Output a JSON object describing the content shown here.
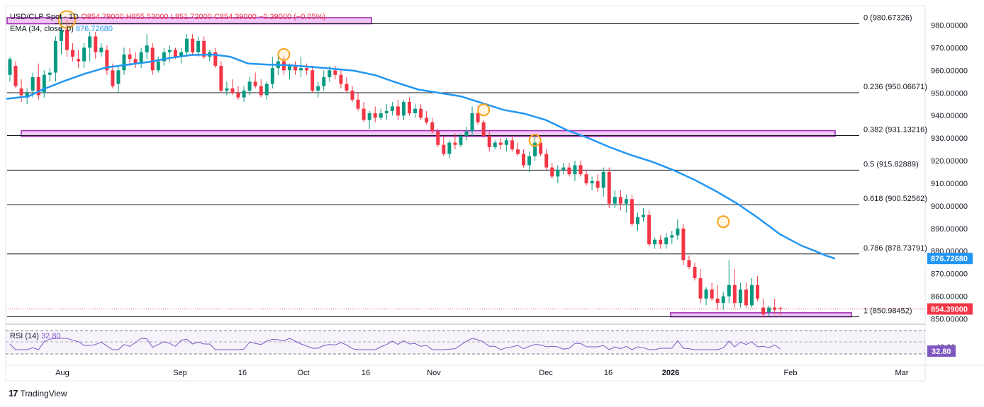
{
  "header": {
    "symbol": "USD/CLP Spot · 1D",
    "open": "O854.79000",
    "high": "H855.53000",
    "low": "L851.72000",
    "close": "C854.39000",
    "change": "−0.39000 (−0.05%)",
    "ema_label": "EMA (34, close, 0)",
    "ema_value": "876.72680"
  },
  "rsi": {
    "label": "RSI (14)",
    "value": "32.80",
    "axis_label": "40.00"
  },
  "branding": {
    "name": "TradingView"
  },
  "colors": {
    "up": "#089981",
    "down": "#f23645",
    "ema": "#2196f3",
    "fib_line": "#131722",
    "zone": "#9c27b0",
    "zone_fill": "#f3c6f7",
    "highlight_circle": "#f7a21b",
    "rsi": "#7e57c2"
  },
  "chart_data": {
    "type": "candlestick",
    "title": "USD/CLP Spot · 1D",
    "y_axis": {
      "min": 848,
      "max": 983,
      "ticks": [
        "980.00000",
        "970.00000",
        "960.00000",
        "950.00000",
        "940.00000",
        "930.00000",
        "920.00000",
        "910.00000",
        "900.00000",
        "890.00000",
        "880.00000",
        "870.00000",
        "860.00000",
        "850.00000"
      ]
    },
    "x_axis": {
      "ticks": [
        "Aug",
        "Sep",
        "16",
        "Oct",
        "16",
        "Nov",
        "Dec",
        "16",
        "2026",
        "Feb",
        "Mar"
      ]
    },
    "fibonacci": [
      {
        "level": "0",
        "price": 980.67326,
        "label": "0 (980.67326)"
      },
      {
        "level": "0.236",
        "price": 950.06671,
        "label": "0.236 (950.06671)"
      },
      {
        "level": "0.382",
        "price": 931.13216,
        "label": "0.382 (931.13216)"
      },
      {
        "level": "0.5",
        "price": 915.82889,
        "label": "0.5 (915.82889)"
      },
      {
        "level": "0.618",
        "price": 900.52562,
        "label": "0.618 (900.52562)"
      },
      {
        "level": "0.786",
        "price": 878.73791,
        "label": "0.786 (878.73791)"
      },
      {
        "level": "1",
        "price": 850.98452,
        "label": "1 (850.98452)"
      }
    ],
    "zones": [
      {
        "name": "top",
        "low": 980.6,
        "high": 983.3
      },
      {
        "name": "middle",
        "low": 930.8,
        "high": 933.3
      },
      {
        "name": "bottom",
        "low": 850.9,
        "high": 852.7
      }
    ],
    "last_price": {
      "value": 854.39,
      "label": "854.39000"
    },
    "ema": {
      "name": "EMA (34, close, 0)",
      "last": 876.7268,
      "last_label": "876.72680",
      "points": [
        [
          9,
          947.4
        ],
        [
          40,
          948.5
        ],
        [
          60,
          951.5
        ],
        [
          90,
          955.2
        ],
        [
          120,
          958.5
        ],
        [
          150,
          961.3
        ],
        [
          180,
          962.5
        ],
        [
          210,
          963.7
        ],
        [
          240,
          965.5
        ],
        [
          270,
          966.8
        ],
        [
          300,
          967.0
        ],
        [
          325,
          966.0
        ],
        [
          350,
          963.0
        ],
        [
          380,
          962.5
        ],
        [
          410,
          962.2
        ],
        [
          440,
          961.5
        ],
        [
          470,
          960.7
        ],
        [
          500,
          959.8
        ],
        [
          530,
          957.8
        ],
        [
          560,
          954.5
        ],
        [
          590,
          951.5
        ],
        [
          620,
          950.0
        ],
        [
          650,
          948.5
        ],
        [
          680,
          945.5
        ],
        [
          710,
          942.5
        ],
        [
          740,
          940.8
        ],
        [
          770,
          938.0
        ],
        [
          800,
          933.5
        ],
        [
          830,
          930.0
        ],
        [
          860,
          926.0
        ],
        [
          890,
          922.5
        ],
        [
          920,
          919.5
        ],
        [
          950,
          915.8
        ],
        [
          980,
          911.5
        ],
        [
          1010,
          906.5
        ],
        [
          1040,
          901.0
        ],
        [
          1070,
          894.5
        ],
        [
          1100,
          887.5
        ],
        [
          1130,
          882.5
        ],
        [
          1150,
          880.0
        ],
        [
          1165,
          878.0
        ],
        [
          1178,
          876.7
        ]
      ]
    },
    "candles": [
      {
        "o": 958,
        "h": 966,
        "l": 955,
        "c": 965
      },
      {
        "o": 962,
        "h": 964,
        "l": 952,
        "c": 953
      },
      {
        "o": 952,
        "h": 956,
        "l": 946,
        "c": 949
      },
      {
        "o": 948,
        "h": 952,
        "l": 945,
        "c": 950
      },
      {
        "o": 951,
        "h": 959,
        "l": 948,
        "c": 957
      },
      {
        "o": 957,
        "h": 963,
        "l": 947,
        "c": 949
      },
      {
        "o": 950,
        "h": 960,
        "l": 948,
        "c": 958
      },
      {
        "o": 958,
        "h": 961,
        "l": 955,
        "c": 959
      },
      {
        "o": 959,
        "h": 975,
        "l": 955,
        "c": 973
      },
      {
        "o": 973,
        "h": 984,
        "l": 967,
        "c": 978
      },
      {
        "o": 978,
        "h": 982,
        "l": 966,
        "c": 969
      },
      {
        "o": 969,
        "h": 972,
        "l": 964,
        "c": 966
      },
      {
        "o": 965,
        "h": 969,
        "l": 961,
        "c": 964
      },
      {
        "o": 964,
        "h": 972,
        "l": 961,
        "c": 970
      },
      {
        "o": 970,
        "h": 977,
        "l": 964,
        "c": 975
      },
      {
        "o": 975,
        "h": 977,
        "l": 965,
        "c": 968
      },
      {
        "o": 968,
        "h": 972,
        "l": 966,
        "c": 970
      },
      {
        "o": 969,
        "h": 971,
        "l": 958,
        "c": 960
      },
      {
        "o": 960,
        "h": 963,
        "l": 952,
        "c": 953
      },
      {
        "o": 954,
        "h": 962,
        "l": 950,
        "c": 960
      },
      {
        "o": 960,
        "h": 970,
        "l": 958,
        "c": 967
      },
      {
        "o": 967,
        "h": 970,
        "l": 962,
        "c": 965
      },
      {
        "o": 965,
        "h": 968,
        "l": 961,
        "c": 963
      },
      {
        "o": 963,
        "h": 970,
        "l": 961,
        "c": 968
      },
      {
        "o": 968,
        "h": 976,
        "l": 965,
        "c": 971
      },
      {
        "o": 970,
        "h": 972,
        "l": 958,
        "c": 960
      },
      {
        "o": 960,
        "h": 966,
        "l": 959,
        "c": 964
      },
      {
        "o": 964,
        "h": 970,
        "l": 962,
        "c": 968
      },
      {
        "o": 968,
        "h": 971,
        "l": 964,
        "c": 969
      },
      {
        "o": 969,
        "h": 970,
        "l": 965,
        "c": 966
      },
      {
        "o": 966,
        "h": 970,
        "l": 963,
        "c": 968
      },
      {
        "o": 968,
        "h": 976,
        "l": 966,
        "c": 974
      },
      {
        "o": 974,
        "h": 976,
        "l": 967,
        "c": 968
      },
      {
        "o": 968,
        "h": 975,
        "l": 966,
        "c": 973
      },
      {
        "o": 973,
        "h": 975,
        "l": 965,
        "c": 966
      },
      {
        "o": 966,
        "h": 969,
        "l": 964,
        "c": 968
      },
      {
        "o": 968,
        "h": 970,
        "l": 961,
        "c": 962
      },
      {
        "o": 962,
        "h": 964,
        "l": 950,
        "c": 951
      },
      {
        "o": 951,
        "h": 955,
        "l": 949,
        "c": 952
      },
      {
        "o": 952,
        "h": 956,
        "l": 949,
        "c": 950
      },
      {
        "o": 950,
        "h": 953,
        "l": 947,
        "c": 948
      },
      {
        "o": 948,
        "h": 953,
        "l": 946,
        "c": 951
      },
      {
        "o": 951,
        "h": 957,
        "l": 949,
        "c": 955
      },
      {
        "o": 955,
        "h": 959,
        "l": 952,
        "c": 953
      },
      {
        "o": 953,
        "h": 956,
        "l": 948,
        "c": 949
      },
      {
        "o": 949,
        "h": 955,
        "l": 947,
        "c": 954
      },
      {
        "o": 954,
        "h": 966,
        "l": 952,
        "c": 961
      },
      {
        "o": 961,
        "h": 968,
        "l": 958,
        "c": 964
      },
      {
        "o": 964,
        "h": 966,
        "l": 958,
        "c": 960
      },
      {
        "o": 960,
        "h": 963,
        "l": 956,
        "c": 962
      },
      {
        "o": 962,
        "h": 964,
        "l": 958,
        "c": 960
      },
      {
        "o": 960,
        "h": 966,
        "l": 957,
        "c": 961
      },
      {
        "o": 961,
        "h": 963,
        "l": 958,
        "c": 960
      },
      {
        "o": 960,
        "h": 962,
        "l": 950,
        "c": 951
      },
      {
        "o": 951,
        "h": 955,
        "l": 948,
        "c": 953
      },
      {
        "o": 953,
        "h": 960,
        "l": 951,
        "c": 957
      },
      {
        "o": 957,
        "h": 962,
        "l": 955,
        "c": 960
      },
      {
        "o": 960,
        "h": 962,
        "l": 956,
        "c": 958
      },
      {
        "o": 958,
        "h": 960,
        "l": 952,
        "c": 954
      },
      {
        "o": 954,
        "h": 957,
        "l": 950,
        "c": 951
      },
      {
        "o": 951,
        "h": 953,
        "l": 946,
        "c": 947
      },
      {
        "o": 947,
        "h": 950,
        "l": 942,
        "c": 943
      },
      {
        "o": 943,
        "h": 946,
        "l": 937,
        "c": 938
      },
      {
        "o": 938,
        "h": 942,
        "l": 934,
        "c": 941
      },
      {
        "o": 941,
        "h": 944,
        "l": 937,
        "c": 939
      },
      {
        "o": 939,
        "h": 943,
        "l": 938,
        "c": 941
      },
      {
        "o": 941,
        "h": 945,
        "l": 938,
        "c": 942
      },
      {
        "o": 942,
        "h": 946,
        "l": 940,
        "c": 944
      },
      {
        "o": 944,
        "h": 947,
        "l": 938,
        "c": 940
      },
      {
        "o": 940,
        "h": 947,
        "l": 938,
        "c": 946
      },
      {
        "o": 946,
        "h": 948,
        "l": 940,
        "c": 941
      },
      {
        "o": 941,
        "h": 945,
        "l": 939,
        "c": 943
      },
      {
        "o": 943,
        "h": 945,
        "l": 938,
        "c": 939
      },
      {
        "o": 939,
        "h": 942,
        "l": 936,
        "c": 937
      },
      {
        "o": 937,
        "h": 939,
        "l": 932,
        "c": 933
      },
      {
        "o": 933,
        "h": 934,
        "l": 926,
        "c": 927
      },
      {
        "o": 927,
        "h": 931,
        "l": 922,
        "c": 923
      },
      {
        "o": 923,
        "h": 929,
        "l": 921,
        "c": 928
      },
      {
        "o": 928,
        "h": 932,
        "l": 925,
        "c": 927
      },
      {
        "o": 927,
        "h": 932,
        "l": 926,
        "c": 931
      },
      {
        "o": 931,
        "h": 935,
        "l": 929,
        "c": 933
      },
      {
        "o": 933,
        "h": 944,
        "l": 931,
        "c": 941
      },
      {
        "o": 941,
        "h": 944,
        "l": 936,
        "c": 937
      },
      {
        "o": 937,
        "h": 938,
        "l": 930,
        "c": 931
      },
      {
        "o": 931,
        "h": 933,
        "l": 924,
        "c": 926
      },
      {
        "o": 926,
        "h": 929,
        "l": 925,
        "c": 928
      },
      {
        "o": 928,
        "h": 930,
        "l": 925,
        "c": 927
      },
      {
        "o": 927,
        "h": 930,
        "l": 924,
        "c": 929
      },
      {
        "o": 929,
        "h": 931,
        "l": 924,
        "c": 925
      },
      {
        "o": 925,
        "h": 928,
        "l": 922,
        "c": 923
      },
      {
        "o": 923,
        "h": 925,
        "l": 917,
        "c": 918
      },
      {
        "o": 918,
        "h": 924,
        "l": 915,
        "c": 922
      },
      {
        "o": 922,
        "h": 931,
        "l": 920,
        "c": 928
      },
      {
        "o": 928,
        "h": 930,
        "l": 922,
        "c": 923
      },
      {
        "o": 923,
        "h": 925,
        "l": 916,
        "c": 917
      },
      {
        "o": 917,
        "h": 919,
        "l": 912,
        "c": 913
      },
      {
        "o": 913,
        "h": 918,
        "l": 910,
        "c": 916
      },
      {
        "o": 916,
        "h": 919,
        "l": 914,
        "c": 917
      },
      {
        "o": 917,
        "h": 919,
        "l": 913,
        "c": 914
      },
      {
        "o": 914,
        "h": 920,
        "l": 911,
        "c": 918
      },
      {
        "o": 918,
        "h": 920,
        "l": 913,
        "c": 914
      },
      {
        "o": 914,
        "h": 916,
        "l": 909,
        "c": 910
      },
      {
        "o": 910,
        "h": 913,
        "l": 907,
        "c": 911
      },
      {
        "o": 911,
        "h": 914,
        "l": 906,
        "c": 908
      },
      {
        "o": 908,
        "h": 917,
        "l": 904,
        "c": 915
      },
      {
        "o": 915,
        "h": 917,
        "l": 899,
        "c": 901
      },
      {
        "o": 901,
        "h": 907,
        "l": 899,
        "c": 904
      },
      {
        "o": 904,
        "h": 907,
        "l": 898,
        "c": 901
      },
      {
        "o": 901,
        "h": 905,
        "l": 897,
        "c": 903
      },
      {
        "o": 903,
        "h": 905,
        "l": 891,
        "c": 892
      },
      {
        "o": 892,
        "h": 897,
        "l": 889,
        "c": 895
      },
      {
        "o": 895,
        "h": 899,
        "l": 893,
        "c": 896
      },
      {
        "o": 896,
        "h": 898,
        "l": 882,
        "c": 883
      },
      {
        "o": 883,
        "h": 886,
        "l": 881,
        "c": 885
      },
      {
        "o": 885,
        "h": 887,
        "l": 881,
        "c": 883
      },
      {
        "o": 883,
        "h": 888,
        "l": 881,
        "c": 886
      },
      {
        "o": 886,
        "h": 889,
        "l": 883,
        "c": 887
      },
      {
        "o": 887,
        "h": 894,
        "l": 885,
        "c": 890
      },
      {
        "o": 890,
        "h": 892,
        "l": 874,
        "c": 876
      },
      {
        "o": 876,
        "h": 878,
        "l": 872,
        "c": 873
      },
      {
        "o": 873,
        "h": 875,
        "l": 867,
        "c": 868
      },
      {
        "o": 868,
        "h": 872,
        "l": 857,
        "c": 859
      },
      {
        "o": 859,
        "h": 864,
        "l": 856,
        "c": 863
      },
      {
        "o": 863,
        "h": 866,
        "l": 858,
        "c": 859
      },
      {
        "o": 859,
        "h": 865,
        "l": 854,
        "c": 857
      },
      {
        "o": 857,
        "h": 862,
        "l": 854,
        "c": 860
      },
      {
        "o": 860,
        "h": 876,
        "l": 857,
        "c": 865
      },
      {
        "o": 865,
        "h": 872,
        "l": 855,
        "c": 857
      },
      {
        "o": 857,
        "h": 866,
        "l": 855,
        "c": 863
      },
      {
        "o": 863,
        "h": 866,
        "l": 855,
        "c": 856
      },
      {
        "o": 856,
        "h": 868,
        "l": 855,
        "c": 865
      },
      {
        "o": 865,
        "h": 869,
        "l": 858,
        "c": 859
      },
      {
        "o": 855,
        "h": 859,
        "l": 851,
        "c": 852
      },
      {
        "o": 853,
        "h": 856,
        "l": 851,
        "c": 855
      },
      {
        "o": 855,
        "h": 859,
        "l": 852,
        "c": 854
      },
      {
        "o": 854.79,
        "h": 855.53,
        "l": 851.72,
        "c": 854.39
      }
    ],
    "highlight_circles": [
      {
        "candle": 10,
        "price": 982.5
      },
      {
        "candle": 48,
        "price": 967.0
      },
      {
        "candle": 83,
        "price": 942.5
      },
      {
        "candle": 92,
        "price": 929.0
      },
      {
        "candle": 125,
        "price": 893.0
      }
    ]
  }
}
